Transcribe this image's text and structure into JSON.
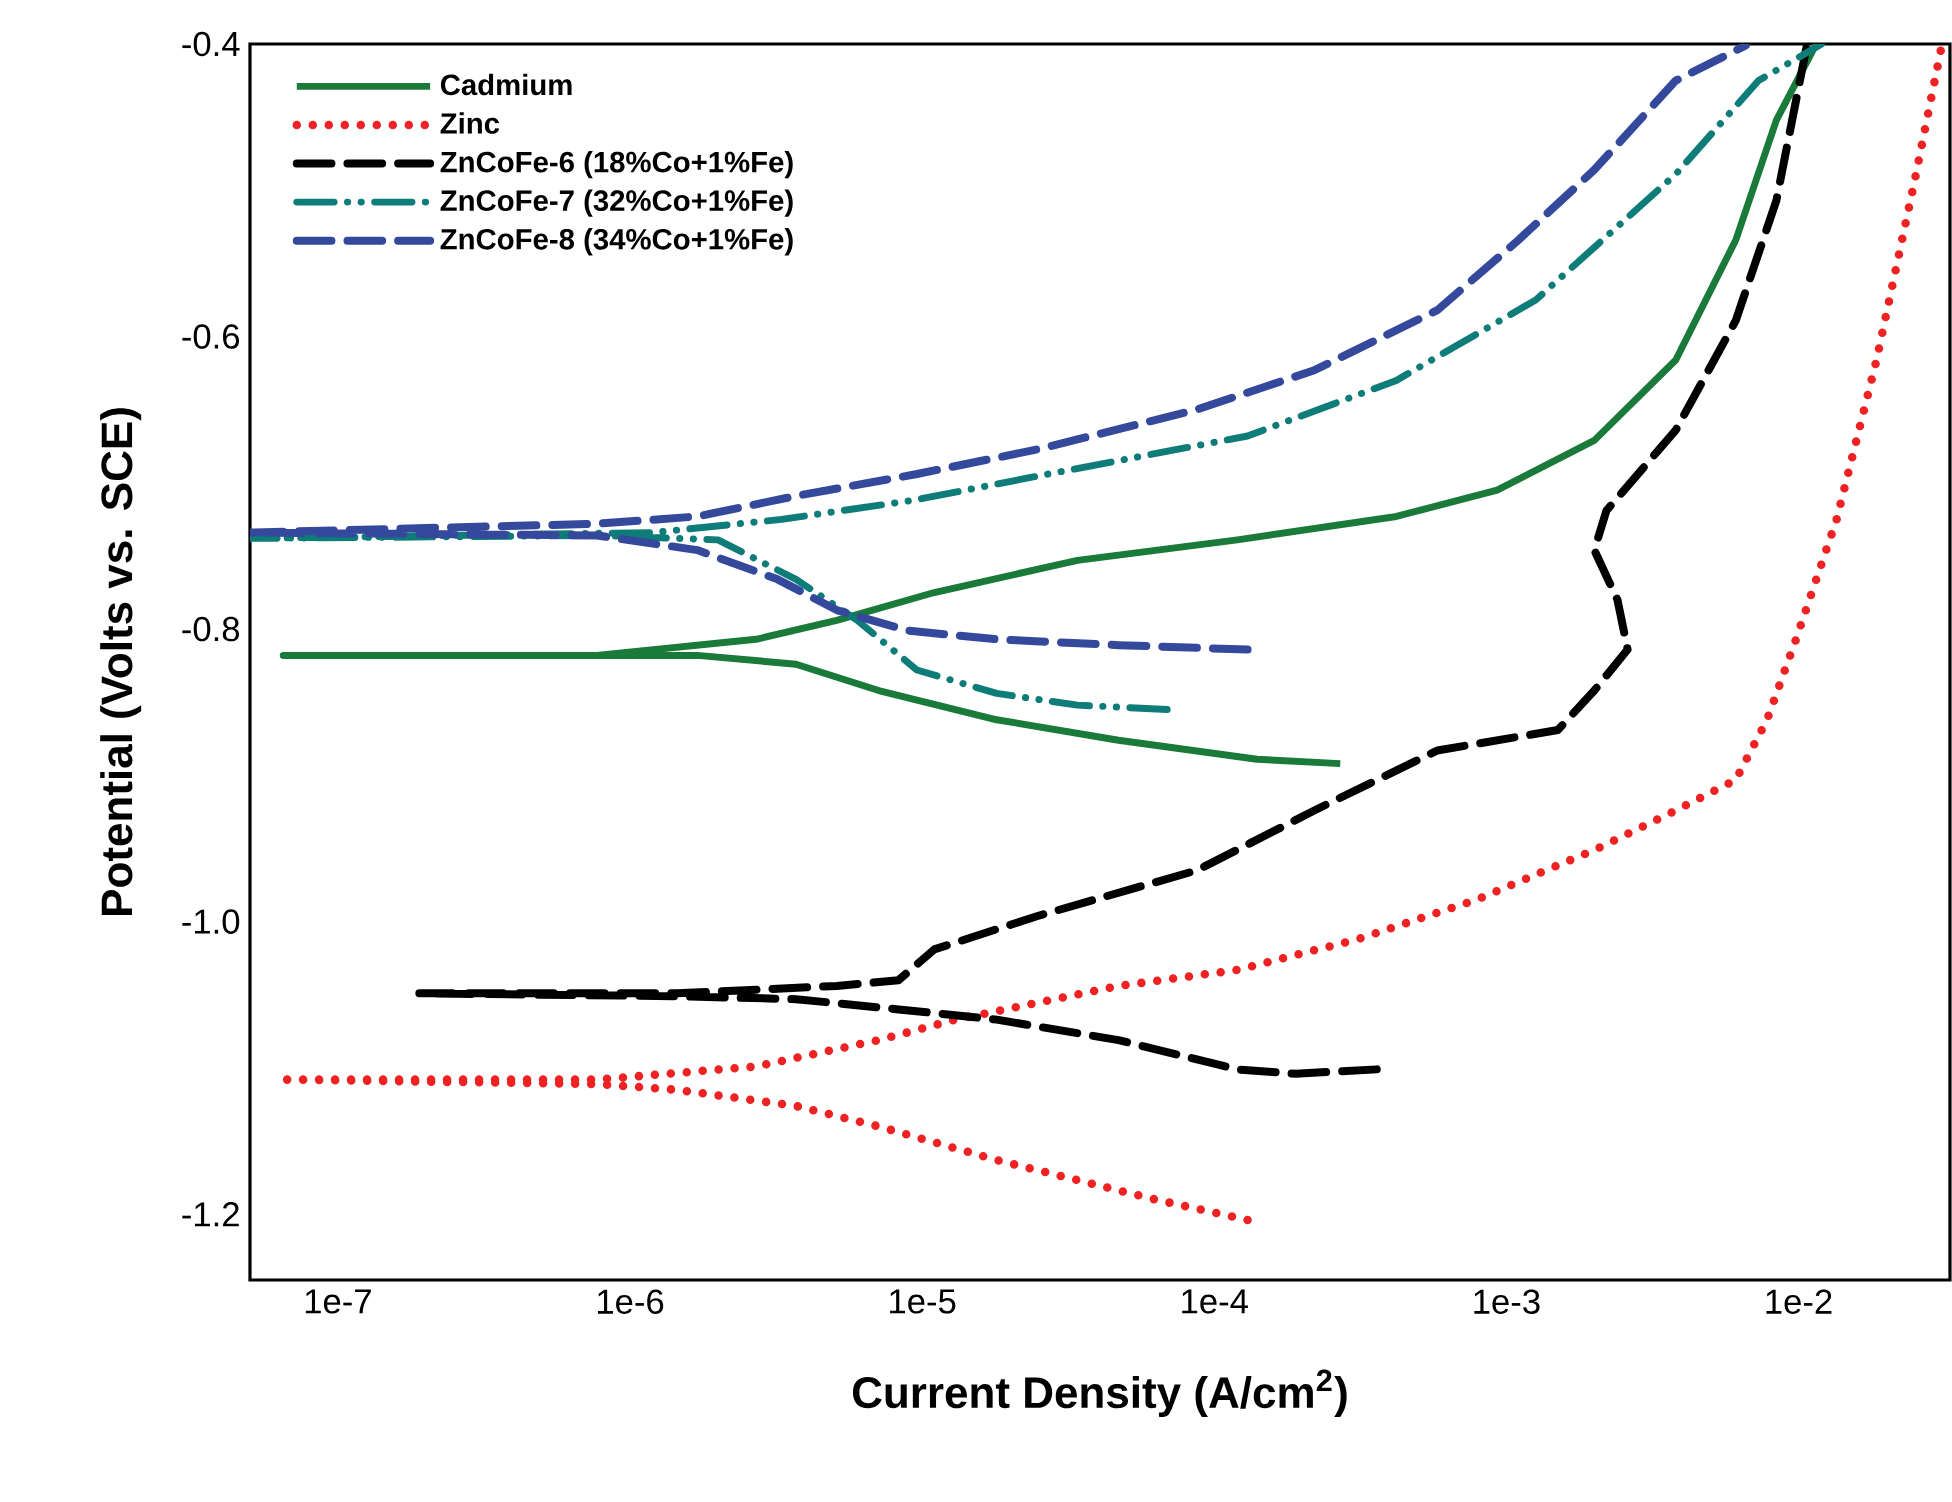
{
  "chart_data": {
    "type": "line",
    "xlabel": "Current Density (A/cm$^{2}$)",
    "ylabel": "Potential (Volts vs. SCE)",
    "log": "x",
    "grid": false,
    "legend": "top left",
    "xlim": [
      5e-08,
      0.033
    ],
    "ylim": [
      -1.245,
      -0.4
    ],
    "xticks": [
      {
        "value": 1e-07,
        "label": "1e-7"
      },
      {
        "value": 1e-06,
        "label": "1e-6"
      },
      {
        "value": 1e-05,
        "label": "1e-5"
      },
      {
        "value": 0.0001,
        "label": "1e-4"
      },
      {
        "value": 0.001,
        "label": "1e-3"
      },
      {
        "value": 0.01,
        "label": "1e-2"
      }
    ],
    "yticks": [
      -0.4,
      -0.6,
      -0.8,
      {
        "value": -1.0,
        "label": "-1.0"
      },
      -1.2
    ],
    "series": [
      {
        "name": "Cadmium",
        "color": "#1a7a3a",
        "line_style": "solid",
        "x": [
          0.00027,
          0.00014,
          4.7e-05,
          1.8e-05,
          7.1e-06,
          3.7e-06,
          1.7e-06,
          6.5e-08,
          7.7e-07,
          2.7e-06,
          5.1e-06,
          1.1e-05,
          3.4e-05,
          0.00012,
          0.00042,
          0.00093,
          0.002,
          0.0038,
          0.0061,
          0.0084,
          0.0115
        ],
        "values": [
          -0.892,
          -0.889,
          -0.876,
          -0.862,
          -0.842,
          -0.824,
          -0.818,
          -0.818,
          -0.818,
          -0.807,
          -0.794,
          -0.775,
          -0.753,
          -0.739,
          -0.723,
          -0.705,
          -0.671,
          -0.616,
          -0.534,
          -0.452,
          -0.4
        ]
      },
      {
        "name": "Zinc",
        "color": "#ee2222",
        "line_style": "dotted",
        "x": [
          0.00013,
          6.3e-05,
          1.8e-05,
          7.1e-06,
          3.7e-06,
          1.45e-06,
          7.7e-07,
          6.7e-08,
          7.7e-07,
          2.7e-06,
          7.1e-06,
          1.3e-05,
          4.7e-05,
          0.00012,
          0.00031,
          0.00079,
          0.002,
          0.0038,
          0.0061,
          0.0078,
          0.0098,
          0.0135,
          0.0185,
          0.025,
          0.031
        ],
        "values": [
          -1.204,
          -1.19,
          -1.163,
          -1.14,
          -1.126,
          -1.115,
          -1.111,
          -1.108,
          -1.108,
          -1.099,
          -1.081,
          -1.067,
          -1.044,
          -1.033,
          -1.012,
          -0.985,
          -0.951,
          -0.924,
          -0.903,
          -0.862,
          -0.807,
          -0.725,
          -0.616,
          -0.493,
          -0.4
        ]
      },
      {
        "name": "ZnCoFe-6 (18%Co+1%Fe)",
        "color": "#000000",
        "line_style": "dashed",
        "x": [
          0.00036,
          0.00019,
          0.00012,
          4.7e-05,
          1.8e-05,
          8.3e-06,
          3.7e-06,
          1.45e-06,
          1.9e-07,
          1.45e-06,
          5.1e-06,
          8.3e-06,
          1.1e-05,
          2.5e-05,
          8.7e-05,
          0.00022,
          0.00058,
          0.0015,
          0.002,
          0.0026,
          0.0024,
          0.002,
          0.0022,
          0.0038,
          0.0061,
          0.0084,
          0.0107
        ],
        "values": [
          -1.101,
          -1.104,
          -1.101,
          -1.081,
          -1.067,
          -1.06,
          -1.053,
          -1.051,
          -1.049,
          -1.049,
          -1.044,
          -1.04,
          -1.019,
          -0.996,
          -0.965,
          -0.924,
          -0.883,
          -0.869,
          -0.842,
          -0.814,
          -0.78,
          -0.746,
          -0.719,
          -0.664,
          -0.589,
          -0.507,
          -0.4
        ]
      },
      {
        "name": "ZnCoFe-7 (32%Co+1%Fe)",
        "color": "#0e7c78",
        "line_style": "dashdotdotted",
        "x": [
          6.9e-05,
          3.4e-05,
          1.8e-05,
          9.6e-06,
          6e-06,
          3.7e-06,
          2e-06,
          7.7e-07,
          5e-08,
          1.2e-06,
          3.3e-06,
          9.3e-06,
          2.7e-05,
          0.00013,
          0.00042,
          0.00126,
          0.0038,
          0.0073,
          0.012
        ],
        "values": [
          -0.855,
          -0.852,
          -0.844,
          -0.828,
          -0.794,
          -0.766,
          -0.739,
          -0.736,
          -0.738,
          -0.734,
          -0.725,
          -0.712,
          -0.694,
          -0.668,
          -0.63,
          -0.575,
          -0.489,
          -0.425,
          -0.4
        ]
      },
      {
        "name": "ZnCoFe-8 (34%Co+1%Fe)",
        "color": "#34499c",
        "line_style": "dashed",
        "x": [
          0.00013,
          4.7e-05,
          1.8e-05,
          8.9e-06,
          5.1e-06,
          3.2e-06,
          1.7e-06,
          7.7e-07,
          5e-08,
          7.7e-07,
          1.7e-06,
          3.7e-06,
          9.6e-06,
          2.5e-05,
          8.7e-05,
          0.00022,
          0.00058,
          0.0011,
          0.002,
          0.0038,
          0.0066
        ],
        "values": [
          -0.814,
          -0.811,
          -0.807,
          -0.801,
          -0.787,
          -0.766,
          -0.746,
          -0.736,
          -0.734,
          -0.728,
          -0.723,
          -0.709,
          -0.694,
          -0.677,
          -0.65,
          -0.623,
          -0.582,
          -0.534,
          -0.486,
          -0.425,
          -0.401
        ]
      }
    ]
  }
}
